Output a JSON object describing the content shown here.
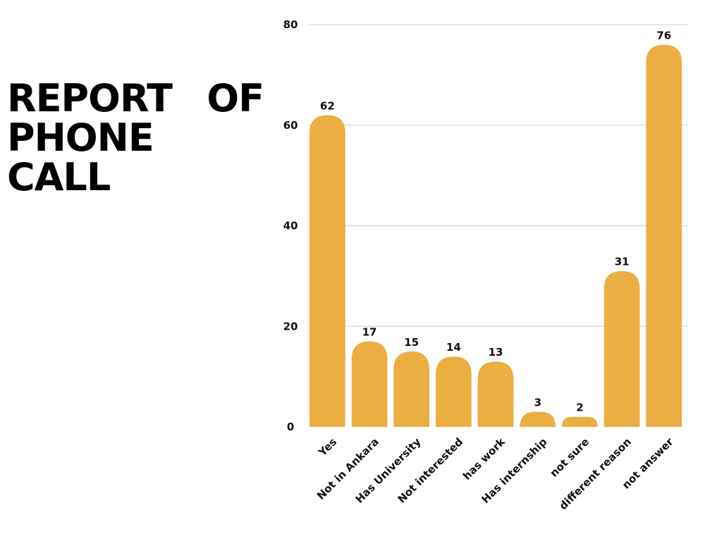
{
  "title_line1_a": "REPORT",
  "title_line1_b": "OF",
  "title_line2": "PHONE CALL",
  "chart_data": {
    "type": "bar",
    "categories": [
      "Yes",
      "Not in Ankara",
      "Has University",
      "Not interested",
      "has work",
      "Has internship",
      "not sure",
      "different reason",
      "not answer"
    ],
    "values": [
      62,
      17,
      15,
      14,
      13,
      3,
      2,
      31,
      76
    ],
    "title": "REPORT OF PHONE CALL",
    "xlabel": "",
    "ylabel": "",
    "ylim": [
      0,
      80
    ],
    "yticks": [
      0,
      20,
      40,
      60,
      80
    ],
    "grid": true,
    "data_labels": true,
    "bar_color": "#EAAE42",
    "grid_color": "#cccccc"
  }
}
